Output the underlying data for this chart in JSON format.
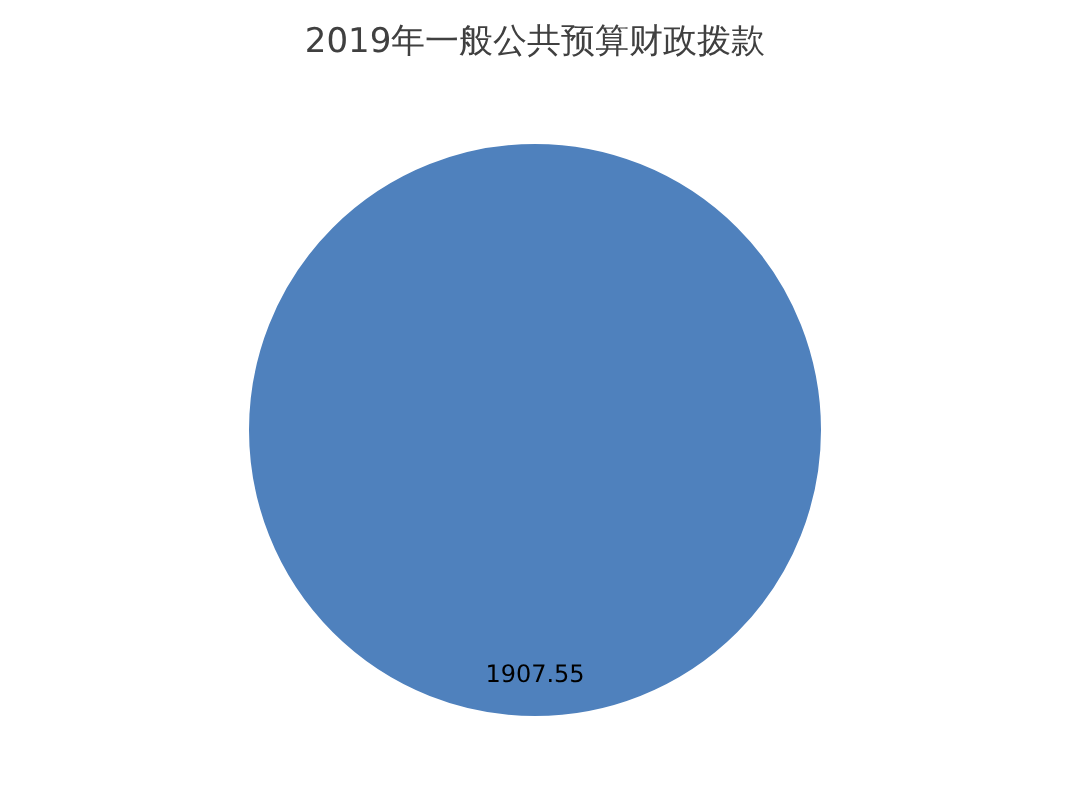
{
  "chart_data": {
    "type": "pie",
    "title": "2019年一般公共预算财政拨款",
    "categories": [
      null
    ],
    "values": [
      1907.55
    ],
    "colors": [
      "#4f81bd"
    ],
    "data_labels": true,
    "legend": false
  }
}
